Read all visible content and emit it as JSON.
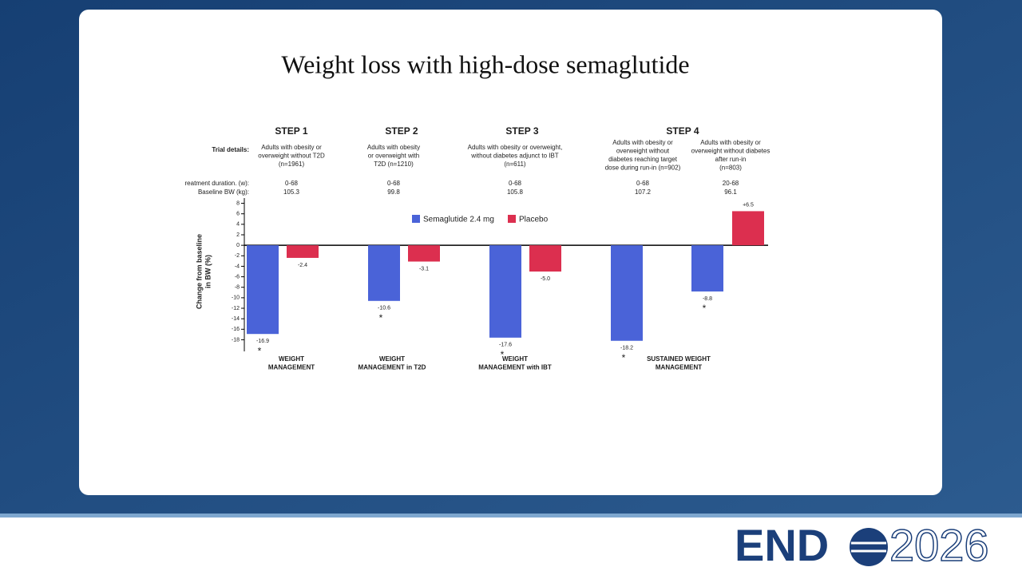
{
  "slide": {
    "title": "Weight loss with high-dose semaglutide",
    "logo": {
      "brand": "END",
      "year": "2026"
    }
  },
  "chart_data": {
    "type": "bar",
    "y_label": [
      "Change from baseline",
      "in BW (%)"
    ],
    "studies": [
      "STEP 1",
      "STEP 2",
      "STEP 3",
      "STEP 4"
    ],
    "row_labels": {
      "details": "Trial details:",
      "duration": "reatment duration. (w):",
      "baseline": "Baseline BW (kg):"
    },
    "trial_details": [
      [
        "Adults with obesity or",
        "overweight without T2D",
        "(n=1961)"
      ],
      [
        "Adults with obesity",
        "or overweight with",
        "T2D (n=1210)"
      ],
      [
        "Adults with obesity or overweight,",
        "without diabetes adjunct to IBT",
        "(n=611)"
      ],
      [
        "Adults with obesity or",
        "overweight without",
        "diabetes reaching target",
        "dose during run-in (n=902)"
      ],
      [
        "Adults with obesity or",
        "overweight without diabetes",
        "after run-in",
        "(n=803)"
      ]
    ],
    "durations": [
      "0-68",
      "0-68",
      "0-68",
      "0-68",
      "20-68"
    ],
    "baseline_bw": [
      105.3,
      99.8,
      105.8,
      107.2,
      96.1
    ],
    "categories": [
      null,
      null,
      null,
      null,
      null
    ],
    "group_labels": [
      [
        "WEIGHT",
        "MANAGEMENT"
      ],
      [
        "WEIGHT",
        "MANAGEMENT in T2D"
      ],
      [
        "WEIGHT",
        "MANAGEMENT with IBT"
      ],
      [
        "SUSTAINED WEIGHT",
        "MANAGEMENT"
      ]
    ],
    "series": [
      {
        "name": "Semaglutide 2.4 mg",
        "color": "#4a63d8",
        "values": [
          -16.9,
          -10.6,
          -17.6,
          -18.2,
          -8.8
        ],
        "value_labels": [
          "-16.9",
          "-10.6",
          "-17.6",
          "-18.2",
          "-8.8"
        ],
        "annotations": [
          "*",
          "*",
          "*",
          "*",
          "*"
        ]
      },
      {
        "name": "Placebo",
        "color": "#dc2f4f",
        "values": [
          -2.4,
          -3.1,
          -5.0,
          null,
          6.5
        ],
        "value_labels": [
          "-2.4",
          "-3.1",
          "-5.0",
          null,
          "+6.5"
        ]
      }
    ],
    "ylim": [
      -19,
      9
    ],
    "yticks": [
      8,
      6,
      4,
      2,
      0,
      -2,
      -4,
      -6,
      -8,
      -10,
      -12,
      -14,
      -16,
      -18
    ]
  }
}
